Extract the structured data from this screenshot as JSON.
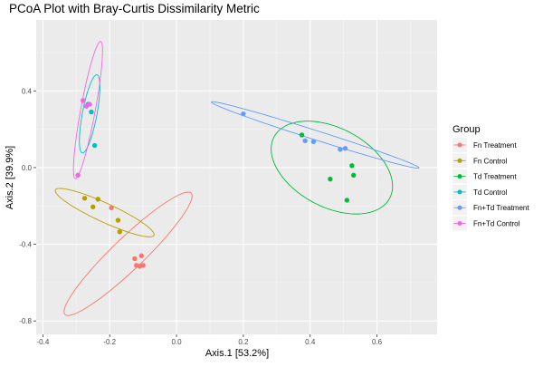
{
  "chart_data": {
    "type": "scatter",
    "title": "PCoA Plot with Bray-Curtis Dissimilarity Metric",
    "xlabel": "Axis.1   [53.2%]",
    "ylabel": "Axis.2   [39.9%]",
    "xlim": [
      -0.42,
      0.78
    ],
    "ylim": [
      -0.87,
      0.77
    ],
    "x_ticks": [
      -0.4,
      -0.2,
      0.0,
      0.2,
      0.4,
      0.6
    ],
    "x_tick_labels": [
      "-0.4",
      "-0.2",
      "0.0",
      "0.2",
      "0.4",
      "0.6"
    ],
    "y_ticks": [
      -0.8,
      -0.4,
      0.0,
      0.4
    ],
    "y_tick_labels": [
      "-0.8",
      "-0.4",
      "0.0",
      "0.4"
    ],
    "grid": true,
    "background": "#ebebeb",
    "legend": {
      "title": "Group",
      "placement": "right"
    },
    "series": [
      {
        "name": "Fn Treatment",
        "color": "#f8766d",
        "points": [
          [
            -0.195,
            -0.21
          ],
          [
            -0.125,
            -0.475
          ],
          [
            -0.105,
            -0.46
          ],
          [
            -0.12,
            -0.51
          ],
          [
            -0.11,
            -0.515
          ],
          [
            -0.1,
            -0.51
          ]
        ],
        "ellipse": {
          "cx": -0.145,
          "cy": -0.45,
          "rx": 0.37,
          "ry": 0.058,
          "angle_deg": 60
        }
      },
      {
        "name": "Fn Control",
        "color": "#b79f00",
        "points": [
          [
            -0.275,
            -0.16
          ],
          [
            -0.25,
            -0.205
          ],
          [
            -0.235,
            -0.165
          ],
          [
            -0.175,
            -0.275
          ],
          [
            -0.17,
            -0.335
          ]
        ],
        "ellipse": {
          "cx": -0.215,
          "cy": -0.235,
          "rx": 0.19,
          "ry": 0.042,
          "angle_deg": -40
        }
      },
      {
        "name": "Td Treatment",
        "color": "#00ba38",
        "points": [
          [
            0.375,
            0.17
          ],
          [
            0.46,
            -0.06
          ],
          [
            0.525,
            0.01
          ],
          [
            0.53,
            -0.04
          ],
          [
            0.51,
            -0.17
          ]
        ],
        "ellipse": {
          "cx": 0.465,
          "cy": 0.0,
          "rx": 0.26,
          "ry": 0.155,
          "angle_deg": -63
        }
      },
      {
        "name": "Td Control",
        "color": "#00bfc4",
        "points": [
          [
            -0.265,
            0.33
          ],
          [
            -0.255,
            0.29
          ],
          [
            -0.245,
            0.115
          ]
        ],
        "ellipse": {
          "cx": -0.26,
          "cy": 0.28,
          "rx": 0.205,
          "ry": 0.022,
          "angle_deg": 84
        }
      },
      {
        "name": "Fn+Td Treatment",
        "color": "#619cff",
        "points": [
          [
            0.2,
            0.28
          ],
          [
            0.385,
            0.14
          ],
          [
            0.41,
            0.135
          ],
          [
            0.49,
            0.095
          ],
          [
            0.505,
            0.1
          ]
        ],
        "ellipse": {
          "cx": 0.415,
          "cy": 0.17,
          "rx": 0.355,
          "ry": 0.022,
          "angle_deg": -29
        }
      },
      {
        "name": "Fn+Td Control",
        "color": "#f564e3",
        "points": [
          [
            -0.28,
            0.35
          ],
          [
            -0.27,
            0.32
          ],
          [
            -0.26,
            0.33
          ],
          [
            -0.295,
            -0.04
          ]
        ],
        "ellipse": {
          "cx": -0.265,
          "cy": 0.3,
          "rx": 0.36,
          "ry": 0.022,
          "angle_deg": 84
        }
      }
    ]
  }
}
